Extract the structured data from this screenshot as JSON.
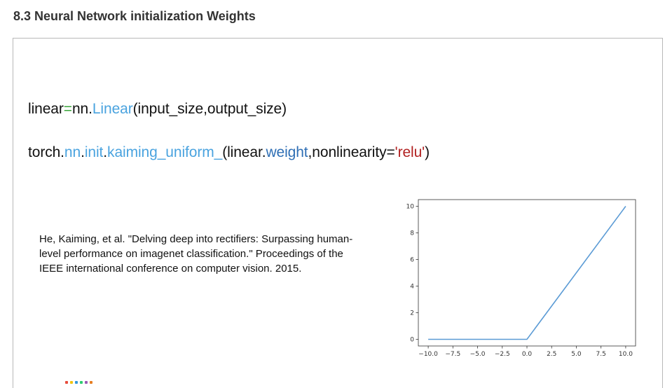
{
  "heading": "8.3 Neural Network initialization Weights",
  "code": {
    "line1": {
      "p1": "linear",
      "p2": "=",
      "p3": "nn.",
      "p4": "Linear",
      "p5": "(input_size,output_size)"
    },
    "line2": {
      "p1": "torch.",
      "p2": "nn",
      "p3": ".",
      "p4": "init",
      "p5": ".",
      "p6": "kaiming_uniform_",
      "p7": "(linear.",
      "p8": "weight",
      "p9": ",nonlinearity=",
      "p10": "'relu'",
      "p11": ")"
    }
  },
  "citation": "He, Kaiming, et al. \"Delving deep into rectifiers: Surpassing human-level performance on imagenet classification.\" Proceedings of the IEEE international conference on computer vision. 2015.",
  "colors": {
    "line_color": "#5b9bd5",
    "code_blue": "#4aa3df",
    "code_dark_blue": "#2f6fb5",
    "code_red": "#b22222"
  },
  "chart_data": {
    "type": "line",
    "series": [
      {
        "x": [
          -10,
          0,
          10
        ],
        "y": [
          0,
          0,
          10
        ]
      }
    ],
    "x_ticks": [
      "-10.0",
      "-7.5",
      "-5.0",
      "-2.5",
      "0.0",
      "2.5",
      "5.0",
      "7.5",
      "10.0"
    ],
    "x_tick_values": [
      -10,
      -7.5,
      -5,
      -2.5,
      0,
      2.5,
      5,
      7.5,
      10
    ],
    "y_ticks": [
      "0",
      "2",
      "4",
      "6",
      "8",
      "10"
    ],
    "y_tick_values": [
      0,
      2,
      4,
      6,
      8,
      10
    ],
    "xlim": [
      -11,
      11
    ],
    "ylim": [
      -0.5,
      10.5
    ],
    "grid": false
  }
}
